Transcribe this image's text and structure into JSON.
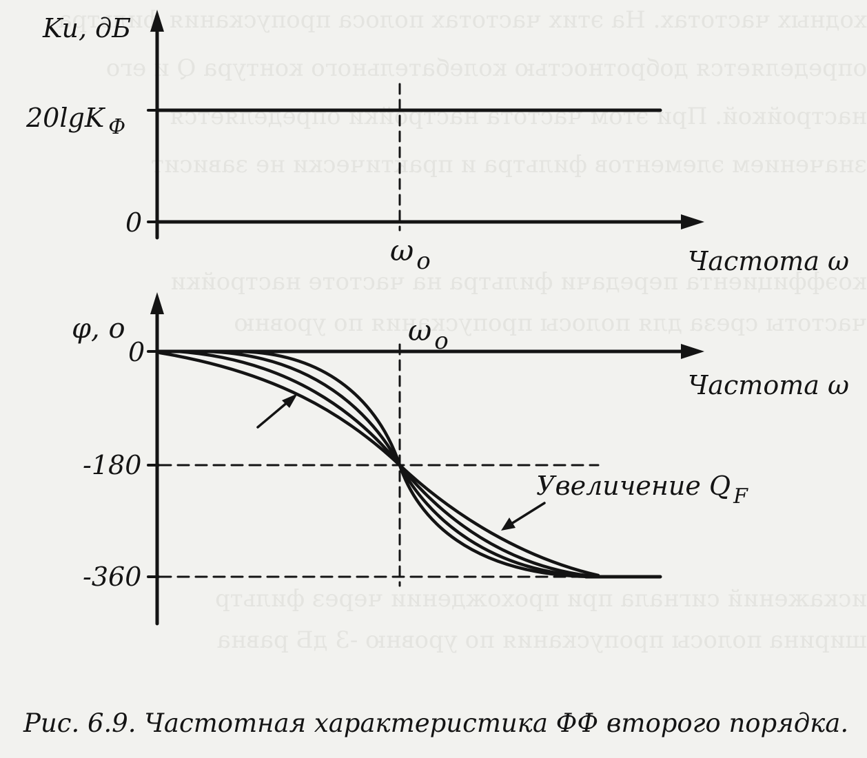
{
  "colors": {
    "background": "#f2f2ef",
    "ink": "#141414",
    "show_through": "#d9d9d4"
  },
  "amplitude_plot": {
    "y_axis_label": "Ku, дБ",
    "level_label_main": "20lgK",
    "level_label_sub": "Ф",
    "zero_label": "0",
    "center_freq_main": "ω",
    "center_freq_sub": "o",
    "x_axis_label": "Частота ω"
  },
  "phase_plot": {
    "y_axis_label": "φ, o",
    "center_freq_main": "ω",
    "center_freq_sub": "o",
    "tick_labels": [
      "0",
      "-180",
      "-360"
    ],
    "x_axis_label": "Частота ω",
    "annotation_main": "Увеличение Q",
    "annotation_sub": "F"
  },
  "caption": "Рис. 6.9. Частотная характеристика ФФ второго порядка."
}
